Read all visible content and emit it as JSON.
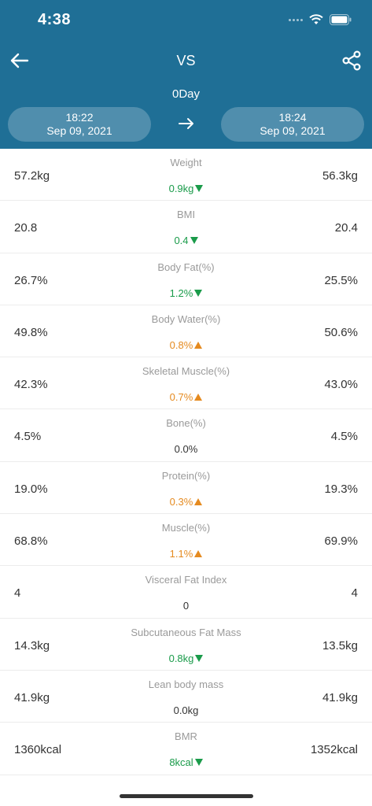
{
  "status": {
    "time": "4:38"
  },
  "nav": {
    "title": "VS",
    "day": "0Day"
  },
  "dates": {
    "left": {
      "time": "18:22",
      "date": "Sep 09, 2021"
    },
    "right": {
      "time": "18:24",
      "date": "Sep 09, 2021"
    }
  },
  "colors": {
    "header": "#1f6f96",
    "decrease": "#1a9b4a",
    "increase": "#e58a1f"
  },
  "rows": [
    {
      "label": "Weight",
      "left": "57.2kg",
      "right": "56.3kg",
      "diff": "0.9kg",
      "trend": "down"
    },
    {
      "label": "BMI",
      "left": "20.8",
      "right": "20.4",
      "diff": "0.4",
      "trend": "down"
    },
    {
      "label": "Body Fat(%)",
      "left": "26.7%",
      "right": "25.5%",
      "diff": "1.2%",
      "trend": "down"
    },
    {
      "label": "Body Water(%)",
      "left": "49.8%",
      "right": "50.6%",
      "diff": "0.8%",
      "trend": "up"
    },
    {
      "label": "Skeletal Muscle(%)",
      "left": "42.3%",
      "right": "43.0%",
      "diff": "0.7%",
      "trend": "up"
    },
    {
      "label": "Bone(%)",
      "left": "4.5%",
      "right": "4.5%",
      "diff": "0.0%",
      "trend": "none"
    },
    {
      "label": "Protein(%)",
      "left": "19.0%",
      "right": "19.3%",
      "diff": "0.3%",
      "trend": "up"
    },
    {
      "label": "Muscle(%)",
      "left": "68.8%",
      "right": "69.9%",
      "diff": "1.1%",
      "trend": "up"
    },
    {
      "label": "Visceral Fat Index",
      "left": "4",
      "right": "4",
      "diff": "0",
      "trend": "none"
    },
    {
      "label": "Subcutaneous Fat Mass",
      "left": "14.3kg",
      "right": "13.5kg",
      "diff": "0.8kg",
      "trend": "down"
    },
    {
      "label": "Lean body mass",
      "left": "41.9kg",
      "right": "41.9kg",
      "diff": "0.0kg",
      "trend": "none"
    },
    {
      "label": "BMR",
      "left": "1360kcal",
      "right": "1352kcal",
      "diff": "8kcal",
      "trend": "down"
    }
  ]
}
